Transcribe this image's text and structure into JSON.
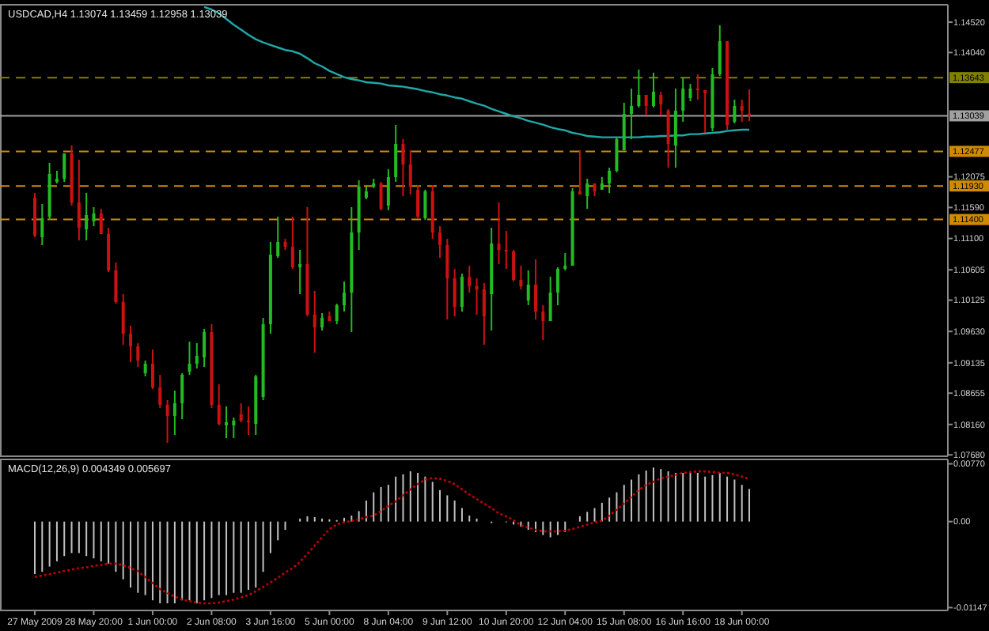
{
  "chart_data": [
    {
      "type": "candlestick",
      "title": "USDCAD,H4  1.13074 1.13459 1.12958 1.13039",
      "categories": [
        null,
        null,
        null,
        null,
        null,
        null,
        null,
        null,
        null,
        null,
        null,
        null,
        null,
        null,
        null,
        null,
        null,
        null,
        null,
        null,
        null,
        null,
        null,
        null,
        null,
        null,
        null,
        null,
        null,
        null,
        null,
        null,
        null,
        null,
        null,
        null,
        null,
        null,
        null,
        null,
        null,
        null,
        null,
        null,
        null,
        null,
        null,
        null,
        null,
        null,
        null,
        null,
        null,
        null,
        null,
        null,
        null,
        null,
        null,
        null,
        null,
        null,
        null,
        null,
        null,
        null,
        null,
        null,
        null,
        null,
        null,
        null,
        null,
        null,
        null,
        null,
        null,
        null,
        null,
        null,
        null,
        null,
        null,
        null,
        null,
        null,
        null,
        null,
        null,
        null,
        null,
        null,
        null,
        null,
        null,
        null,
        null,
        null
      ],
      "ohlc": [
        [
          1.11745,
          1.1182,
          1.1112,
          1.11145
        ],
        [
          1.1112,
          1.11645,
          1.10995,
          1.1142
        ],
        [
          1.11445,
          1.12295,
          1.11395,
          1.1212
        ],
        [
          1.11995,
          1.1217,
          1.1197,
          1.12045
        ],
        [
          1.12045,
          1.12445,
          1.11995,
          1.12445
        ],
        [
          1.12445,
          1.1257,
          1.1162,
          1.1167
        ],
        [
          1.1167,
          1.12345,
          1.1107,
          1.1127
        ],
        [
          1.11245,
          1.1182,
          1.1107,
          1.1147
        ],
        [
          1.1137,
          1.11595,
          1.11295,
          1.11495
        ],
        [
          1.11495,
          1.1157,
          1.1117,
          1.1117
        ],
        [
          1.1117,
          1.1127,
          1.1057,
          1.10595
        ],
        [
          1.10595,
          1.1072,
          1.1007,
          1.10095
        ],
        [
          1.10095,
          1.1022,
          1.0942,
          1.09595
        ],
        [
          1.09595,
          1.0972,
          1.09145,
          1.09395
        ],
        [
          1.09395,
          1.09445,
          1.0907,
          1.0917
        ],
        [
          1.0897,
          1.0917,
          1.0892,
          1.0912
        ],
        [
          1.0912,
          1.09345,
          1.0872,
          1.08745
        ],
        [
          1.08745,
          1.08945,
          1.0842,
          1.0847
        ],
        [
          1.0847,
          1.08545,
          1.0787,
          1.08295
        ],
        [
          1.08295,
          1.08695,
          1.07995,
          1.08495
        ],
        [
          1.08495,
          1.0897,
          1.08245,
          1.08945
        ],
        [
          1.08995,
          1.0947,
          1.08945,
          1.0912
        ],
        [
          1.0912,
          1.09445,
          1.09045,
          1.09245
        ],
        [
          1.0922,
          1.0967,
          1.0907,
          1.0962
        ],
        [
          1.0962,
          1.09745,
          1.0842,
          1.0847
        ],
        [
          1.0847,
          1.08795,
          1.08145,
          1.0817
        ],
        [
          1.08145,
          1.08445,
          1.07945,
          1.08195
        ],
        [
          1.08145,
          1.0827,
          1.07945,
          1.0822
        ],
        [
          1.0832,
          1.08495,
          1.08195,
          1.0822
        ],
        [
          1.0822,
          1.08445,
          1.07995,
          1.08195
        ],
        [
          1.0817,
          1.08945,
          1.07995,
          1.0892
        ],
        [
          1.08595,
          1.09845,
          1.08545,
          1.09745
        ],
        [
          1.09745,
          1.11045,
          1.09595,
          1.10845
        ],
        [
          1.1082,
          1.11445,
          1.10795,
          1.11045
        ],
        [
          1.11045,
          1.11095,
          1.1092,
          1.1097
        ],
        [
          1.1097,
          1.11445,
          1.1062,
          1.10645
        ],
        [
          1.10645,
          1.1092,
          1.1022,
          1.10695
        ],
        [
          1.10695,
          1.11595,
          1.0987,
          1.09895
        ],
        [
          1.09895,
          1.1027,
          1.09295,
          1.09695
        ],
        [
          1.09695,
          1.0992,
          1.09645,
          1.09845
        ],
        [
          1.0987,
          1.09945,
          1.09795,
          1.09795
        ],
        [
          1.09795,
          1.1007,
          1.09745,
          1.10045
        ],
        [
          1.10045,
          1.1042,
          1.09945,
          1.10245
        ],
        [
          1.10245,
          1.11595,
          1.0962,
          1.11195
        ],
        [
          1.11195,
          1.1202,
          1.1092,
          1.1192
        ],
        [
          1.11745,
          1.1192,
          1.1172,
          1.11845
        ],
        [
          1.1192,
          1.12045,
          1.11895,
          1.1197
        ],
        [
          1.1197,
          1.11995,
          1.11545,
          1.1157
        ],
        [
          1.1162,
          1.12195,
          1.11545,
          1.1207
        ],
        [
          1.1207,
          1.12895,
          1.11995,
          1.12595
        ],
        [
          1.12595,
          1.1267,
          1.1177,
          1.1227
        ],
        [
          1.1227,
          1.12495,
          1.11795,
          1.1192
        ],
        [
          1.1187,
          1.11945,
          1.1142,
          1.11445
        ],
        [
          1.1142,
          1.1187,
          1.11395,
          1.11845
        ],
        [
          1.11845,
          1.11945,
          1.11095,
          1.11195
        ],
        [
          1.11195,
          1.11295,
          1.10795,
          1.10995
        ],
        [
          1.10995,
          1.11095,
          1.0982,
          1.1047
        ],
        [
          1.1047,
          1.1062,
          1.0987,
          1.1002
        ],
        [
          1.1002,
          1.10545,
          1.09945,
          1.10495
        ],
        [
          1.10495,
          1.1067,
          1.10245,
          1.10345
        ],
        [
          1.10345,
          1.1047,
          1.09895,
          1.10295
        ],
        [
          1.10295,
          1.10395,
          1.0942,
          1.0987
        ],
        [
          1.1022,
          1.1127,
          1.09645,
          1.1102
        ],
        [
          1.1102,
          1.1167,
          1.10695,
          1.1092
        ],
        [
          1.1092,
          1.1122,
          1.1062,
          1.10895
        ],
        [
          1.10895,
          1.1092,
          1.1042,
          1.10445
        ],
        [
          1.10445,
          1.1067,
          1.10295,
          1.10345
        ],
        [
          1.1012,
          1.10595,
          1.10045,
          1.1037
        ],
        [
          1.1037,
          1.1077,
          1.0982,
          1.09945
        ],
        [
          1.09945,
          1.10045,
          1.09495,
          1.09795
        ],
        [
          1.09795,
          1.10495,
          1.09795,
          1.10245
        ],
        [
          1.10245,
          1.10645,
          1.10045,
          1.1062
        ],
        [
          1.1062,
          1.1087,
          1.10595,
          1.1067
        ],
        [
          1.1067,
          1.11895,
          1.1067,
          1.11845
        ],
        [
          1.11845,
          1.12495,
          1.11795,
          1.11795
        ],
        [
          1.1177,
          1.12045,
          1.1157,
          1.1197
        ],
        [
          1.1197,
          1.1197,
          1.1177,
          1.11845
        ],
        [
          1.1187,
          1.1207,
          1.1187,
          1.1197
        ],
        [
          1.1197,
          1.1222,
          1.1182,
          1.1217
        ],
        [
          1.1217,
          1.12695,
          1.12145,
          1.1267
        ],
        [
          1.12495,
          1.13245,
          1.12495,
          1.1307
        ],
        [
          1.1307,
          1.1347,
          1.1267,
          1.13195
        ],
        [
          1.13195,
          1.1377,
          1.1317,
          1.1337
        ],
        [
          1.1337,
          1.1337,
          1.13045,
          1.13195
        ],
        [
          1.13195,
          1.1372,
          1.1317,
          1.1342
        ],
        [
          1.1337,
          1.1342,
          1.13045,
          1.1322
        ],
        [
          1.1312,
          1.13145,
          1.1222,
          1.12595
        ],
        [
          1.1257,
          1.1347,
          1.1222,
          1.1312
        ],
        [
          1.1312,
          1.13645,
          1.12945,
          1.1347
        ],
        [
          1.1332,
          1.13545,
          1.1327,
          1.1347
        ],
        [
          1.1347,
          1.13695,
          1.13295,
          1.13445
        ],
        [
          1.13445,
          1.13445,
          1.1277,
          1.13395
        ],
        [
          1.12845,
          1.13795,
          1.12795,
          1.13695
        ],
        [
          1.13695,
          1.1447,
          1.1367,
          1.1422
        ],
        [
          1.1422,
          1.1422,
          1.1282,
          1.12895
        ],
        [
          1.12945,
          1.13295,
          1.1292,
          1.13195
        ],
        [
          1.13195,
          1.13295,
          1.12945,
          1.1312
        ],
        [
          1.13074,
          1.13459,
          1.12958,
          1.13039
        ]
      ],
      "colors": [
        "#cc1111",
        "#22bb22",
        "#22bb22",
        "#22bb22",
        "#22bb22",
        "#cc1111",
        "#cc1111",
        "#22bb22",
        "#22bb22",
        "#cc1111",
        "#cc1111",
        "#cc1111",
        "#cc1111",
        "#cc1111",
        "#cc1111",
        "#22bb22",
        "#cc1111",
        "#cc1111",
        "#cc1111",
        "#22bb22",
        "#22bb22",
        "#22bb22",
        "#22bb22",
        "#22bb22",
        "#cc1111",
        "#cc1111",
        "#22bb22",
        "#22bb22",
        "#cc1111",
        "#cc1111",
        "#22bb22",
        "#22bb22",
        "#22bb22",
        "#22bb22",
        "#cc1111",
        "#cc1111",
        "#22bb22",
        "#cc1111",
        "#cc1111",
        "#22bb22",
        "#cc1111",
        "#22bb22",
        "#22bb22",
        "#22bb22",
        "#22bb22",
        "#22bb22",
        "#22bb22",
        "#cc1111",
        "#22bb22",
        "#22bb22",
        "#cc1111",
        "#cc1111",
        "#cc1111",
        "#22bb22",
        "#cc1111",
        "#cc1111",
        "#cc1111",
        "#cc1111",
        "#22bb22",
        "#cc1111",
        "#cc1111",
        "#cc1111",
        "#22bb22",
        "#cc1111",
        "#cc1111",
        "#cc1111",
        "#cc1111",
        "#22bb22",
        "#cc1111",
        "#cc1111",
        "#22bb22",
        "#22bb22",
        "#22bb22",
        "#22bb22",
        "#cc1111",
        "#22bb22",
        "#cc1111",
        "#22bb22",
        "#22bb22",
        "#22bb22",
        "#22bb22",
        "#22bb22",
        "#22bb22",
        "#cc1111",
        "#22bb22",
        "#cc1111",
        "#cc1111",
        "#22bb22",
        "#22bb22",
        "#22bb22",
        "#cc1111",
        "#cc1111",
        "#22bb22",
        "#22bb22",
        "#cc1111",
        "#22bb22",
        "#cc1111",
        "#cc1111"
      ],
      "series": [
        {
          "type": "line",
          "color": "#20a8a8",
          "values": [
            null,
            null,
            null,
            null,
            null,
            null,
            null,
            null,
            null,
            null,
            null,
            null,
            null,
            null,
            null,
            null,
            null,
            null,
            null,
            null,
            null,
            null,
            null,
            1.1476,
            1.1472,
            1.1466,
            1.1457,
            1.1448,
            1.144,
            1.1432,
            1.1425,
            1.142,
            1.1416,
            1.1412,
            1.1408,
            1.1406,
            1.1402,
            1.1395,
            1.1387,
            1.1382,
            1.1375,
            1.137,
            1.1365,
            1.1362,
            1.136,
            1.1357,
            1.1356,
            1.1355,
            1.1352,
            1.1351,
            1.135,
            1.1348,
            1.1346,
            1.1343,
            1.1341,
            1.1338,
            1.1336,
            1.1333,
            1.1331,
            1.1327,
            1.1323,
            1.132,
            1.1315,
            1.1311,
            1.1307,
            1.1303,
            1.13,
            1.1296,
            1.1293,
            1.129,
            1.1286,
            1.1283,
            1.1281,
            1.1277,
            1.1275,
            1.1272,
            1.1271,
            1.127,
            1.127,
            1.127,
            1.127,
            1.127,
            1.127,
            1.1271,
            1.1271,
            1.1272,
            1.1272,
            1.1273,
            1.1273,
            1.1275,
            1.1275,
            1.1276,
            1.1277,
            1.1278,
            1.128,
            1.1281,
            1.1282,
            1.1282
          ]
        }
      ],
      "ylim": [
        1.0768,
        1.14795
      ],
      "yticks": [
        {
          "value": 1.1452,
          "label": "1.14520"
        },
        {
          "value": 1.1404,
          "label": "1.14040"
        },
        {
          "value": 1.12075,
          "label": "1.12075"
        },
        {
          "value": 1.1159,
          "label": "1.11590"
        },
        {
          "value": 1.111,
          "label": "1.11100"
        },
        {
          "value": 1.10605,
          "label": "1.10605"
        },
        {
          "value": 1.10125,
          "label": "1.10125"
        },
        {
          "value": 1.0963,
          "label": "1.09630"
        },
        {
          "value": 1.09135,
          "label": "1.09135"
        },
        {
          "value": 1.08655,
          "label": "1.08655"
        },
        {
          "value": 1.0816,
          "label": "1.08160"
        },
        {
          "value": 1.0768,
          "label": "1.07680"
        }
      ],
      "ref_lines": [
        {
          "axis": "y",
          "value": 1.13643,
          "label": "1.13643",
          "color": "#808000",
          "line_style": "dashed"
        },
        {
          "axis": "y",
          "value": 1.13039,
          "label": "1.13039",
          "color": "#a0a0a0",
          "line_style": "solid"
        },
        {
          "axis": "y",
          "value": 1.12477,
          "label": "1.12477",
          "color": "#d08a00",
          "line_style": "dashed"
        },
        {
          "axis": "y",
          "value": 1.1193,
          "label": "1.11930",
          "color": "#d08a00",
          "line_style": "dashed"
        },
        {
          "axis": "y",
          "value": 1.114,
          "label": "1.11400",
          "color": "#d08a00",
          "line_style": "dashed"
        }
      ],
      "tick_labels": "y"
    },
    {
      "type": "bar",
      "title": "MACD(12,26,9) 0.004349 0.005697",
      "categories": [
        "27 May 2009",
        null,
        null,
        null,
        null,
        null,
        null,
        null,
        "28 May 20:00",
        null,
        null,
        null,
        null,
        null,
        null,
        null,
        "1 Jun 00:00",
        null,
        null,
        null,
        null,
        null,
        null,
        null,
        "2 Jun 08:00",
        null,
        null,
        null,
        null,
        null,
        null,
        null,
        "3 Jun 16:00",
        null,
        null,
        null,
        null,
        null,
        null,
        null,
        "5 Jun 00:00",
        null,
        null,
        null,
        null,
        null,
        null,
        null,
        "8 Jun 04:00",
        null,
        null,
        null,
        null,
        null,
        null,
        null,
        "9 Jun 12:00",
        null,
        null,
        null,
        null,
        null,
        null,
        null,
        "10 Jun 20:00",
        null,
        null,
        null,
        null,
        null,
        null,
        null,
        "12 Jun 04:00",
        null,
        null,
        null,
        null,
        null,
        null,
        null,
        "15 Jun 08:00",
        null,
        null,
        null,
        null,
        null,
        null,
        null,
        "16 Jun 16:00",
        null,
        null,
        null,
        null,
        null,
        null,
        null,
        "18 Jun 00:00",
        null
      ],
      "series": [
        {
          "type": "bar",
          "color": "#c0c0c0",
          "values": [
            -0.007,
            -0.0067,
            -0.006,
            -0.0053,
            -0.0046,
            -0.0042,
            -0.0042,
            -0.0046,
            -0.0049,
            -0.0053,
            -0.0056,
            -0.0067,
            -0.0077,
            -0.0088,
            -0.0095,
            -0.0098,
            -0.0105,
            -0.0109,
            -0.0109,
            -0.0109,
            -0.0105,
            -0.0105,
            -0.0109,
            -0.0105,
            -0.0102,
            -0.0098,
            -0.0098,
            -0.0095,
            -0.0095,
            -0.0091,
            -0.0088,
            -0.0067,
            -0.0042,
            -0.0025,
            -0.0011,
            null,
            0.0004,
            0.0007,
            0.0006,
            0.0004,
            0.0003,
            0.0002,
            0.0005,
            0.0008,
            0.0014,
            0.0028,
            0.0039,
            0.0046,
            0.0049,
            0.006,
            0.0063,
            0.0067,
            0.0065,
            0.006,
            0.0053,
            0.0042,
            0.0035,
            0.0028,
            0.0018,
            0.0008,
            0.0004,
            null,
            -0.0002,
            null,
            0,
            -0.0004,
            -0.0007,
            -0.0011,
            -0.0014,
            -0.0018,
            -0.0021,
            -0.0018,
            -0.0014,
            null,
            0.0007,
            0.0013,
            0.0018,
            0.0025,
            0.0032,
            0.0039,
            0.0049,
            0.0056,
            0.0063,
            0.0068,
            0.0072,
            0.007,
            0.0067,
            0.0065,
            0.0065,
            0.0067,
            0.0065,
            0.006,
            0.0062,
            0.0065,
            0.006,
            0.0056,
            0.0049,
            0.004349
          ]
        },
        {
          "type": "line",
          "color": "#c00000",
          "line_style": "dotted",
          "values": [
            -0.0074,
            -0.0072,
            -0.007,
            -0.0068,
            -0.0066,
            -0.0064,
            -0.0062,
            -0.0061,
            -0.0059,
            -0.0058,
            -0.0056,
            -0.0056,
            -0.0058,
            -0.0062,
            -0.0066,
            -0.0074,
            -0.0082,
            -0.009,
            -0.0095,
            -0.01,
            -0.0104,
            -0.0106,
            -0.0108,
            -0.0109,
            -0.0109,
            -0.0108,
            -0.0106,
            -0.0104,
            -0.0101,
            -0.0098,
            -0.0093,
            -0.0087,
            -0.0081,
            -0.0075,
            -0.0068,
            -0.0062,
            -0.0054,
            -0.0043,
            -0.0032,
            -0.0021,
            -0.001,
            -0.0004,
            -0.0001,
            0.0001,
            0.0003,
            0.0006,
            0.0008,
            0.0014,
            0.0021,
            0.0027,
            0.0035,
            0.0043,
            0.005,
            0.0056,
            0.0058,
            0.0057,
            0.0054,
            0.005,
            0.0043,
            0.0036,
            0.003,
            0.0024,
            0.0018,
            0.0011,
            0.0007,
            0.0002,
            -0.0005,
            -0.0008,
            -0.0011,
            -0.0013,
            -0.0013,
            -0.0013,
            -0.0012,
            -0.001,
            -0.0007,
            -0.0004,
            -0.0001,
            0.0001,
            0.0008,
            0.0016,
            0.0024,
            0.0033,
            0.0042,
            0.0049,
            0.0053,
            0.0058,
            0.006,
            0.0062,
            0.0065,
            0.0066,
            0.0067,
            0.0067,
            0.0066,
            0.0065,
            0.0065,
            0.0063,
            0.006,
            0.005697
          ]
        }
      ],
      "ylim": [
        -0.01147,
        0.0077
      ],
      "yticks": [
        {
          "value": -0.01147,
          "label": "-0.01147"
        },
        {
          "value": 0,
          "label": "0.00"
        },
        {
          "value": 0.0077,
          "label": "0.00770"
        }
      ]
    }
  ]
}
